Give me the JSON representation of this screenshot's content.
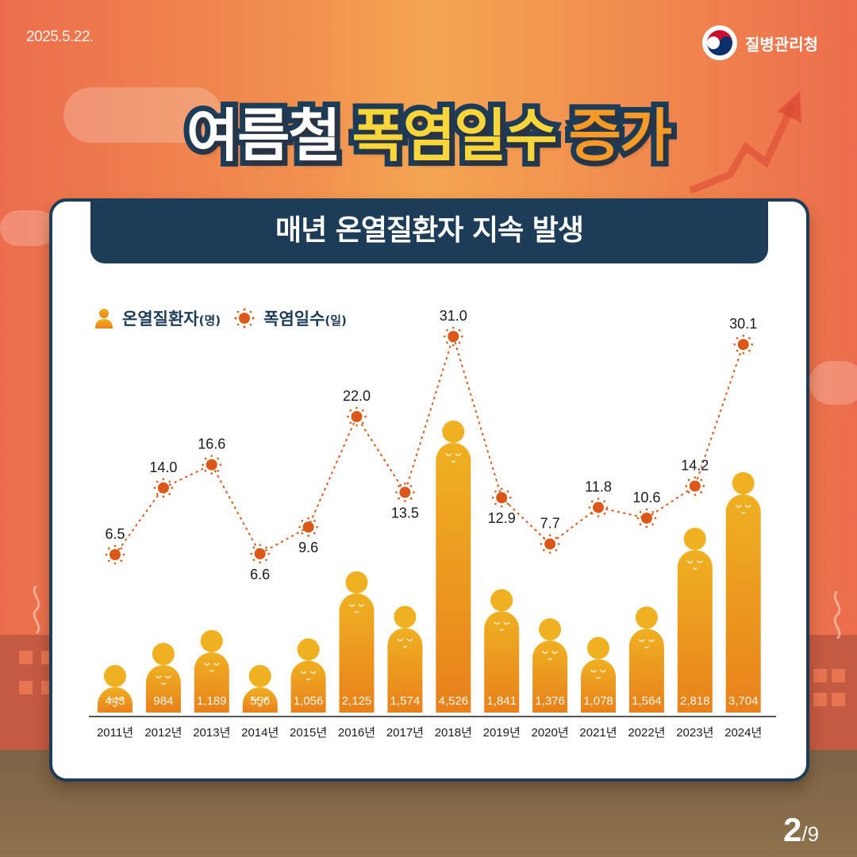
{
  "header": {
    "date": "2025.5.22.",
    "agency": "질병관리청",
    "agency_logo_icon": "taegeuk-logo-icon"
  },
  "title": {
    "part1": "여름철",
    "part2": "폭염일수",
    "part3": "증가"
  },
  "subtitle": "매년 온열질환자 지속 발생",
  "legend": [
    {
      "icon": "person-icon",
      "label": "온열질환자",
      "unit": "(명)"
    },
    {
      "icon": "sun-icon",
      "label": "폭염일수",
      "unit": "(일)"
    }
  ],
  "pagination": {
    "current": "2",
    "total": "/9"
  },
  "colors": {
    "navy": "#1d3c58",
    "bar_top": "#efb022",
    "bar_bottom": "#e8811c",
    "sun": "#d9581a",
    "line": "#d9581a",
    "title_yellow": "#f7d63b",
    "title_orange": "#f39a28"
  },
  "chart_data": {
    "type": "bar+line",
    "title": "매년 온열질환자 지속 발생",
    "categories": [
      "2011년",
      "2012년",
      "2013년",
      "2014년",
      "2015년",
      "2016년",
      "2017년",
      "2018년",
      "2019년",
      "2020년",
      "2021년",
      "2022년",
      "2023년",
      "2024년"
    ],
    "series": [
      {
        "name": "온열질환자(명)",
        "type": "bar",
        "values": [
          443,
          984,
          1189,
          556,
          1056,
          2125,
          1574,
          4526,
          1841,
          1376,
          1078,
          1564,
          2818,
          3704
        ],
        "labels": [
          "443",
          "984",
          "1,189",
          "556",
          "1,056",
          "2,125",
          "1,574",
          "4,526",
          "1,841",
          "1,376",
          "1,078",
          "1,564",
          "2,818",
          "3,704"
        ]
      },
      {
        "name": "폭염일수(일)",
        "type": "line",
        "values": [
          6.5,
          14.0,
          16.6,
          6.6,
          9.6,
          22.0,
          13.5,
          31.0,
          12.9,
          7.7,
          11.8,
          10.6,
          14.2,
          30.1
        ],
        "labels": [
          "6.5",
          "14.0",
          "16.6",
          "6.6",
          "9.6",
          "22.0",
          "13.5",
          "31.0",
          "12.9",
          "7.7",
          "11.8",
          "10.6",
          "14.2",
          "30.1"
        ]
      }
    ],
    "xlabel": "",
    "ylabel": "",
    "legend_position": "top-left",
    "grid": false
  }
}
